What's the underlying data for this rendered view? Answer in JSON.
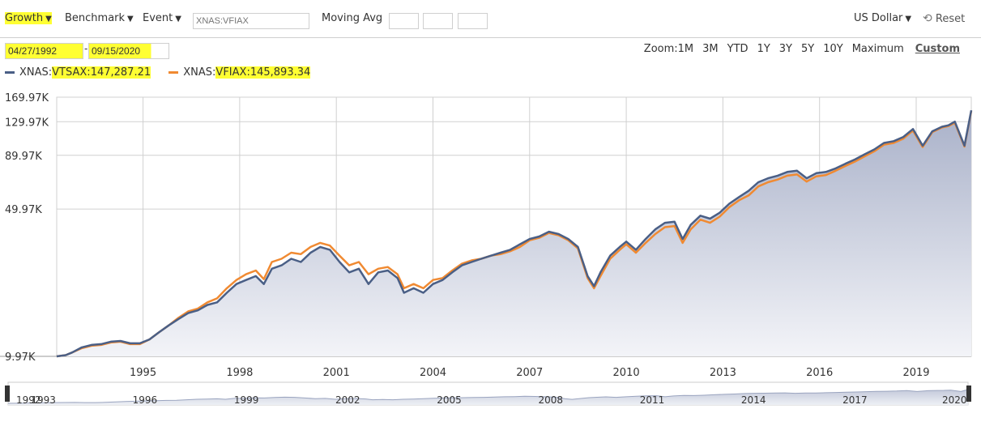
{
  "toolbar": {
    "growth_label": "Growth",
    "benchmark_label": "Benchmark",
    "event_label": "Event",
    "symbol_placeholder": "XNAS:VFIAX",
    "moving_avg_label": "Moving Avg",
    "currency_label": "US Dollar",
    "reset_label": "Reset",
    "reset_icon": "reset-icon",
    "dropdown_icon": "caret-down-icon"
  },
  "range": {
    "start": "04/27/1992",
    "separator": "-",
    "end": "09/15/2020"
  },
  "zoom": {
    "label": "Zoom:",
    "options": [
      "1M",
      "3M",
      "YTD",
      "1Y",
      "3Y",
      "5Y",
      "10Y",
      "Maximum",
      "Custom"
    ],
    "active": "Custom"
  },
  "legend": {
    "items": [
      {
        "prefix": "XNAS:",
        "symbol": "VTSAX",
        "sep": ":",
        "value": "147,287.21",
        "color": "#4a5f86"
      },
      {
        "prefix": "XNAS:",
        "symbol": "VFIAX",
        "sep": ":",
        "value": "145,893.34",
        "color": "#f08a32"
      }
    ]
  },
  "colors": {
    "highlight": "#ffff33",
    "vtsax": "#4a5f86",
    "vfiax": "#f08a32",
    "area_top": "#a9b1c9",
    "area_bottom": "#f3f4f8",
    "grid": "#d0d0d0"
  },
  "chart_data": {
    "type": "line",
    "scale": "log",
    "ylim": [
      9970,
      169970
    ],
    "y_ticks": [
      {
        "value": 169970,
        "label": "169.97K"
      },
      {
        "value": 129970,
        "label": "129.97K"
      },
      {
        "value": 89970,
        "label": "89.97K"
      },
      {
        "value": 49970,
        "label": "49.97K"
      },
      {
        "value": 9970,
        "label": "9.97K"
      }
    ],
    "xlim": [
      1992.32,
      2020.71
    ],
    "x_ticks": [
      1995,
      1998,
      2001,
      2004,
      2007,
      2010,
      2013,
      2016,
      2019
    ],
    "navigator_labels": [
      {
        "year": 1992.32,
        "label": "1992"
      },
      {
        "year": 1993,
        "label": "1993"
      },
      {
        "year": 1996,
        "label": "1996"
      },
      {
        "year": 1999,
        "label": "1999"
      },
      {
        "year": 2002,
        "label": "2002"
      },
      {
        "year": 2005,
        "label": "2005"
      },
      {
        "year": 2008,
        "label": "2008"
      },
      {
        "year": 2011,
        "label": "2011"
      },
      {
        "year": 2014,
        "label": "2014"
      },
      {
        "year": 2017,
        "label": "2017"
      },
      {
        "year": 2020,
        "label": "2020"
      }
    ],
    "x": [
      1992.32,
      1992.6,
      1992.8,
      1993.1,
      1993.4,
      1993.7,
      1994.0,
      1994.3,
      1994.6,
      1994.9,
      1995.2,
      1995.5,
      1995.8,
      1996.1,
      1996.4,
      1996.7,
      1997.0,
      1997.3,
      1997.6,
      1997.9,
      1998.2,
      1998.5,
      1998.75,
      1999.0,
      1999.3,
      1999.6,
      1999.9,
      2000.2,
      2000.5,
      2000.8,
      2001.1,
      2001.4,
      2001.7,
      2002.0,
      2002.3,
      2002.6,
      2002.9,
      2003.1,
      2003.4,
      2003.7,
      2004.0,
      2004.3,
      2004.6,
      2004.9,
      2005.2,
      2005.5,
      2005.8,
      2006.1,
      2006.4,
      2006.7,
      2007.0,
      2007.3,
      2007.6,
      2007.9,
      2008.2,
      2008.5,
      2008.8,
      2009.0,
      2009.2,
      2009.5,
      2009.8,
      2010.0,
      2010.3,
      2010.6,
      2010.9,
      2011.2,
      2011.5,
      2011.75,
      2012.0,
      2012.3,
      2012.6,
      2012.9,
      2013.2,
      2013.5,
      2013.8,
      2014.1,
      2014.4,
      2014.7,
      2015.0,
      2015.3,
      2015.6,
      2015.9,
      2016.2,
      2016.5,
      2016.8,
      2017.1,
      2017.4,
      2017.7,
      2018.0,
      2018.3,
      2018.6,
      2018.9,
      2019.2,
      2019.5,
      2019.8,
      2020.0,
      2020.2,
      2020.5,
      2020.71
    ],
    "series": [
      {
        "name": "XNAS:VTSAX",
        "color": "#4a5f86",
        "values": [
          9970,
          10100,
          10400,
          11000,
          11300,
          11400,
          11700,
          11800,
          11500,
          11500,
          12000,
          13000,
          14000,
          15000,
          16000,
          16500,
          17500,
          18000,
          20000,
          22000,
          23000,
          24000,
          22000,
          26000,
          27000,
          29000,
          28000,
          31000,
          33000,
          32000,
          28000,
          25000,
          26000,
          22000,
          25000,
          25500,
          23500,
          20000,
          21000,
          20000,
          22000,
          23000,
          25000,
          27000,
          28000,
          29000,
          30000,
          31000,
          32000,
          34000,
          36000,
          37000,
          39000,
          38000,
          36000,
          33000,
          24000,
          21500,
          25000,
          30000,
          33000,
          35000,
          32000,
          36000,
          40000,
          43000,
          43500,
          36000,
          42000,
          46500,
          45000,
          48000,
          53000,
          57000,
          61000,
          67000,
          70000,
          72000,
          75000,
          76000,
          70000,
          74000,
          75000,
          78000,
          82000,
          86000,
          91000,
          96000,
          103000,
          105000,
          110000,
          120000,
          100000,
          117000,
          123000,
          125000,
          130000,
          100000,
          147287
        ]
      },
      {
        "name": "XNAS:VFIAX",
        "color": "#f08a32",
        "values": [
          9970,
          10100,
          10400,
          10900,
          11200,
          11300,
          11600,
          11700,
          11400,
          11400,
          12000,
          13000,
          14000,
          15200,
          16300,
          16800,
          18000,
          18800,
          21000,
          23000,
          24500,
          25500,
          23200,
          28000,
          29000,
          31000,
          30500,
          33000,
          34500,
          33500,
          30000,
          27000,
          28000,
          24500,
          26000,
          26500,
          24500,
          21000,
          22000,
          21000,
          23000,
          23500,
          25500,
          27500,
          28500,
          29000,
          30000,
          30500,
          31500,
          33000,
          35500,
          36500,
          38500,
          37500,
          35500,
          32500,
          23500,
          21000,
          24000,
          29000,
          32000,
          34000,
          31000,
          34500,
          38000,
          41000,
          41500,
          34500,
          40000,
          44500,
          43000,
          46000,
          51000,
          55000,
          58000,
          64000,
          67000,
          69000,
          72000,
          73000,
          67500,
          71500,
          72500,
          76000,
          80000,
          84000,
          89000,
          94000,
          101000,
          103000,
          108000,
          118000,
          98500,
          116000,
          122000,
          124000,
          128500,
          99000,
          145893
        ]
      }
    ]
  }
}
